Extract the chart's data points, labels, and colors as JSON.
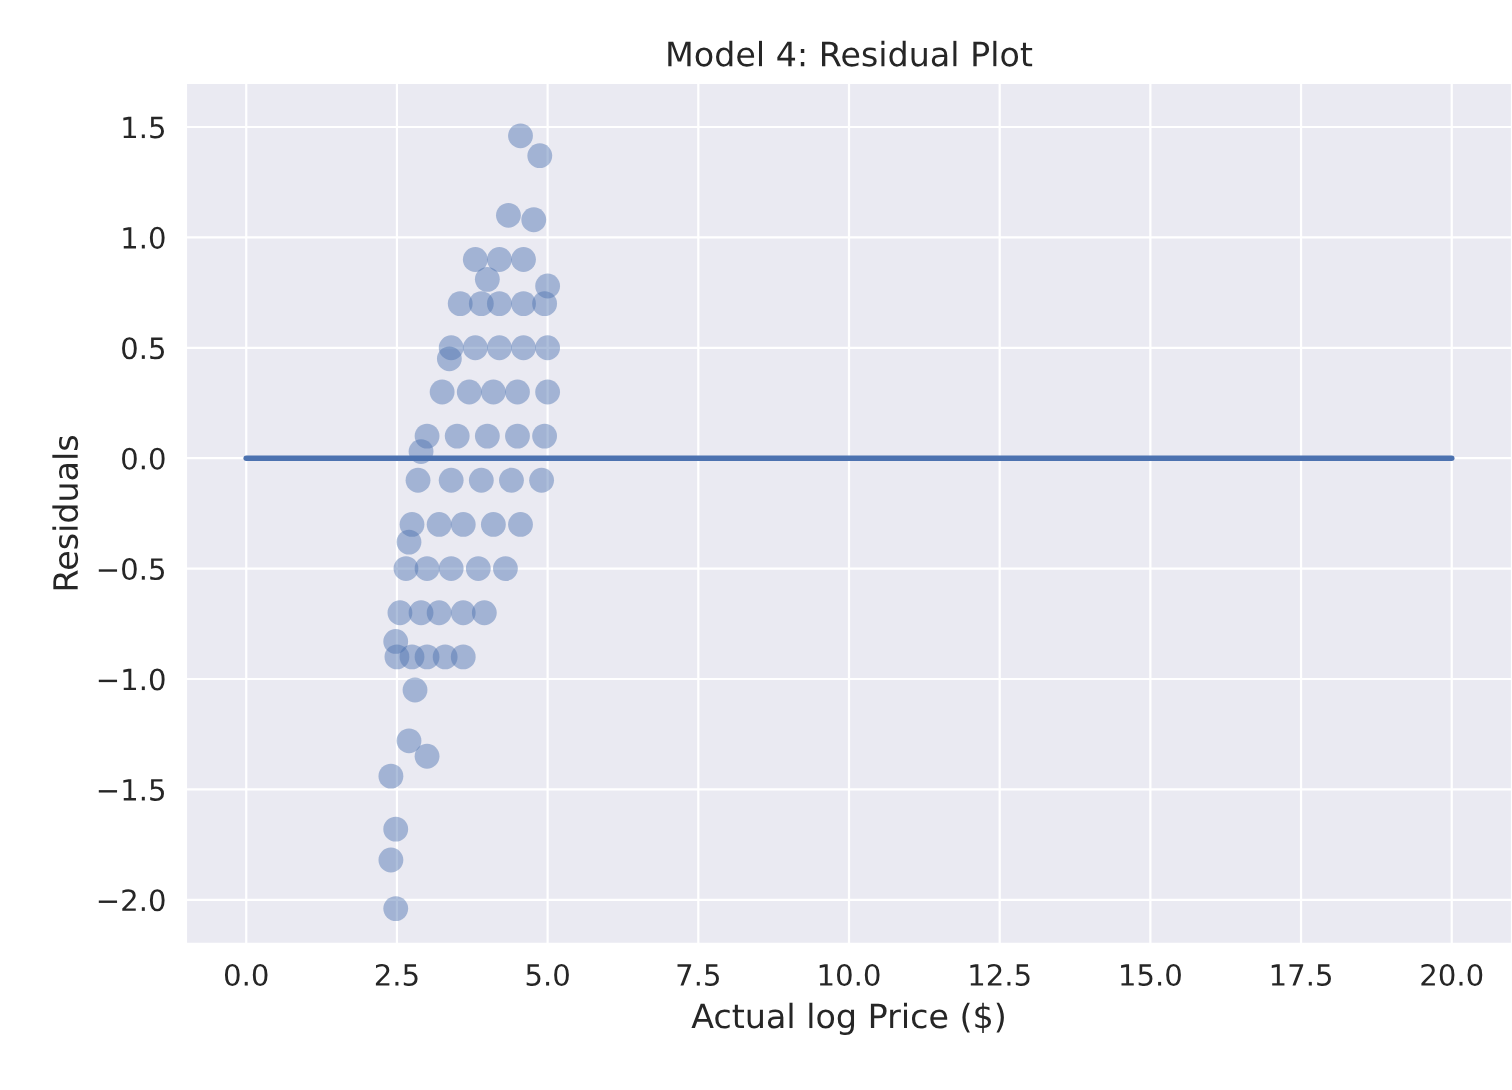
{
  "chart_data": {
    "type": "scatter",
    "title": "Model 4: Residual Plot",
    "xlabel": "Actual log Price ($)",
    "ylabel": "Residuals",
    "xlim": [
      -1,
      21
    ],
    "ylim": [
      -2.2,
      1.7
    ],
    "xticks": [
      {
        "value": 0,
        "label": "0.0"
      },
      {
        "value": 2.5,
        "label": "2.5"
      },
      {
        "value": 5,
        "label": "5.0"
      },
      {
        "value": 7.5,
        "label": "7.5"
      },
      {
        "value": 10,
        "label": "10.0"
      },
      {
        "value": 12.5,
        "label": "12.5"
      },
      {
        "value": 15,
        "label": "15.0"
      },
      {
        "value": 17.5,
        "label": "17.5"
      },
      {
        "value": 20,
        "label": "20.0"
      }
    ],
    "yticks": [
      {
        "value": -2,
        "label": "−2.0"
      },
      {
        "value": -1.5,
        "label": "−1.5"
      },
      {
        "value": -1,
        "label": "−1.0"
      },
      {
        "value": -0.5,
        "label": "−0.5"
      },
      {
        "value": 0,
        "label": "0.0"
      },
      {
        "value": 0.5,
        "label": "0.5"
      },
      {
        "value": 1,
        "label": "1.0"
      },
      {
        "value": 1.5,
        "label": "1.5"
      }
    ],
    "grid": true,
    "series": [
      {
        "color": "#4c72b0",
        "marker": "circle",
        "x": [
          4.55,
          4.87,
          4.35,
          4.77,
          4.0,
          5.0,
          3.8,
          4.2,
          4.6,
          3.55,
          3.9,
          4.2,
          4.6,
          4.95,
          3.4,
          3.8,
          4.2,
          4.6,
          5.0,
          3.25,
          3.7,
          4.1,
          4.5,
          5.0,
          3.0,
          3.5,
          4.0,
          4.5,
          4.95,
          2.85,
          3.4,
          3.9,
          4.4,
          4.9,
          2.75,
          3.2,
          3.6,
          4.1,
          4.55,
          2.65,
          3.0,
          3.4,
          3.85,
          4.3,
          2.55,
          2.9,
          3.2,
          3.6,
          3.95,
          2.5,
          2.75,
          3.0,
          3.3,
          3.6,
          2.8,
          2.7,
          3.0,
          2.4,
          2.48,
          2.4,
          2.48,
          3.37,
          2.9,
          2.7,
          2.48
        ],
        "values": [
          1.46,
          1.37,
          1.1,
          1.08,
          0.81,
          0.78,
          0.9,
          0.9,
          0.9,
          0.7,
          0.7,
          0.7,
          0.7,
          0.7,
          0.5,
          0.5,
          0.5,
          0.5,
          0.5,
          0.3,
          0.3,
          0.3,
          0.3,
          0.3,
          0.1,
          0.1,
          0.1,
          0.1,
          0.1,
          -0.1,
          -0.1,
          -0.1,
          -0.1,
          -0.1,
          -0.3,
          -0.3,
          -0.3,
          -0.3,
          -0.3,
          -0.5,
          -0.5,
          -0.5,
          -0.5,
          -0.5,
          -0.7,
          -0.7,
          -0.7,
          -0.7,
          -0.7,
          -0.9,
          -0.9,
          -0.9,
          -0.9,
          -0.9,
          -1.05,
          -1.28,
          -1.35,
          -1.44,
          -1.68,
          -1.82,
          -2.04,
          0.45,
          0.03,
          -0.38,
          -0.83
        ]
      },
      {
        "type": "line",
        "color": "#4c72b0",
        "x": [
          0,
          20
        ],
        "values": [
          0,
          0
        ]
      }
    ]
  }
}
